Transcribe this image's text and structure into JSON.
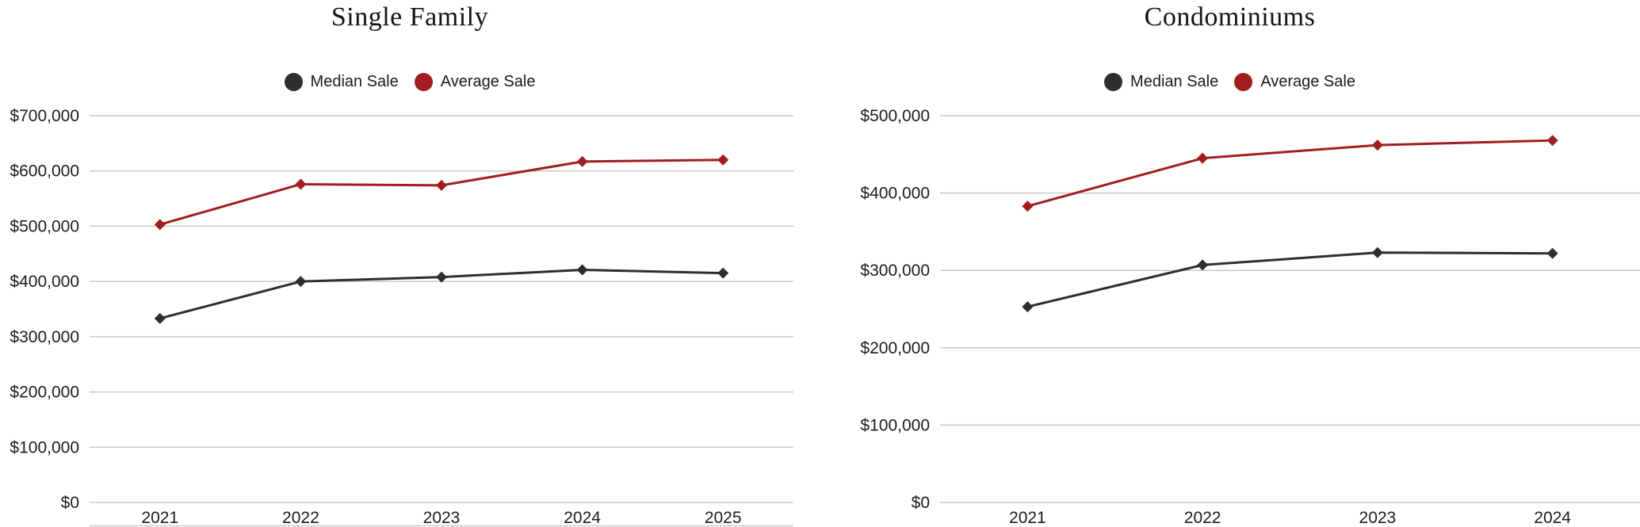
{
  "chart_data": [
    {
      "type": "line",
      "title": "Single Family",
      "categories": [
        "2021",
        "2022",
        "2023",
        "2024",
        "2025"
      ],
      "series": [
        {
          "name": "Median Sale",
          "color": "#2e2e2e",
          "values": [
            333000,
            400000,
            408000,
            421000,
            415000
          ]
        },
        {
          "name": "Average Sale",
          "color": "#a21d1f",
          "values": [
            503000,
            576000,
            574000,
            617000,
            620000
          ]
        }
      ],
      "ylim": [
        0,
        700000
      ],
      "ytick_step": 100000,
      "ytick_prefix": "$",
      "xlabel": "",
      "ylabel": "",
      "legend_position": "top-center",
      "grid": "horizontal",
      "marker": "diamond"
    },
    {
      "type": "line",
      "title": "Condominiums",
      "categories": [
        "2021",
        "2022",
        "2023",
        "2024"
      ],
      "series": [
        {
          "name": "Median Sale",
          "color": "#2e2e2e",
          "values": [
            253000,
            307000,
            323000,
            322000
          ]
        },
        {
          "name": "Average Sale",
          "color": "#a21d1f",
          "values": [
            383000,
            445000,
            462000,
            468000
          ]
        }
      ],
      "ylim": [
        0,
        500000
      ],
      "ytick_step": 100000,
      "ytick_prefix": "$",
      "xlabel": "",
      "ylabel": "",
      "legend_position": "top-center",
      "grid": "horizontal",
      "marker": "diamond"
    }
  ]
}
